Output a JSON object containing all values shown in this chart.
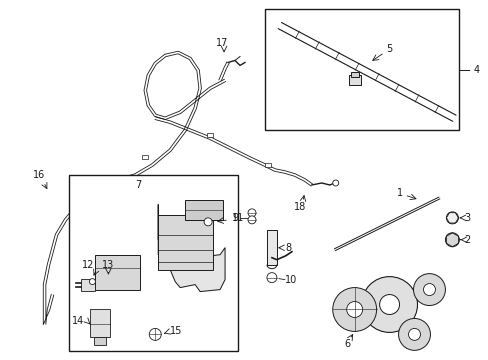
{
  "bg_color": "#ffffff",
  "line_color": "#1a1a1a",
  "label_color": "#000000",
  "figsize": [
    4.89,
    3.6
  ],
  "dpi": 100
}
